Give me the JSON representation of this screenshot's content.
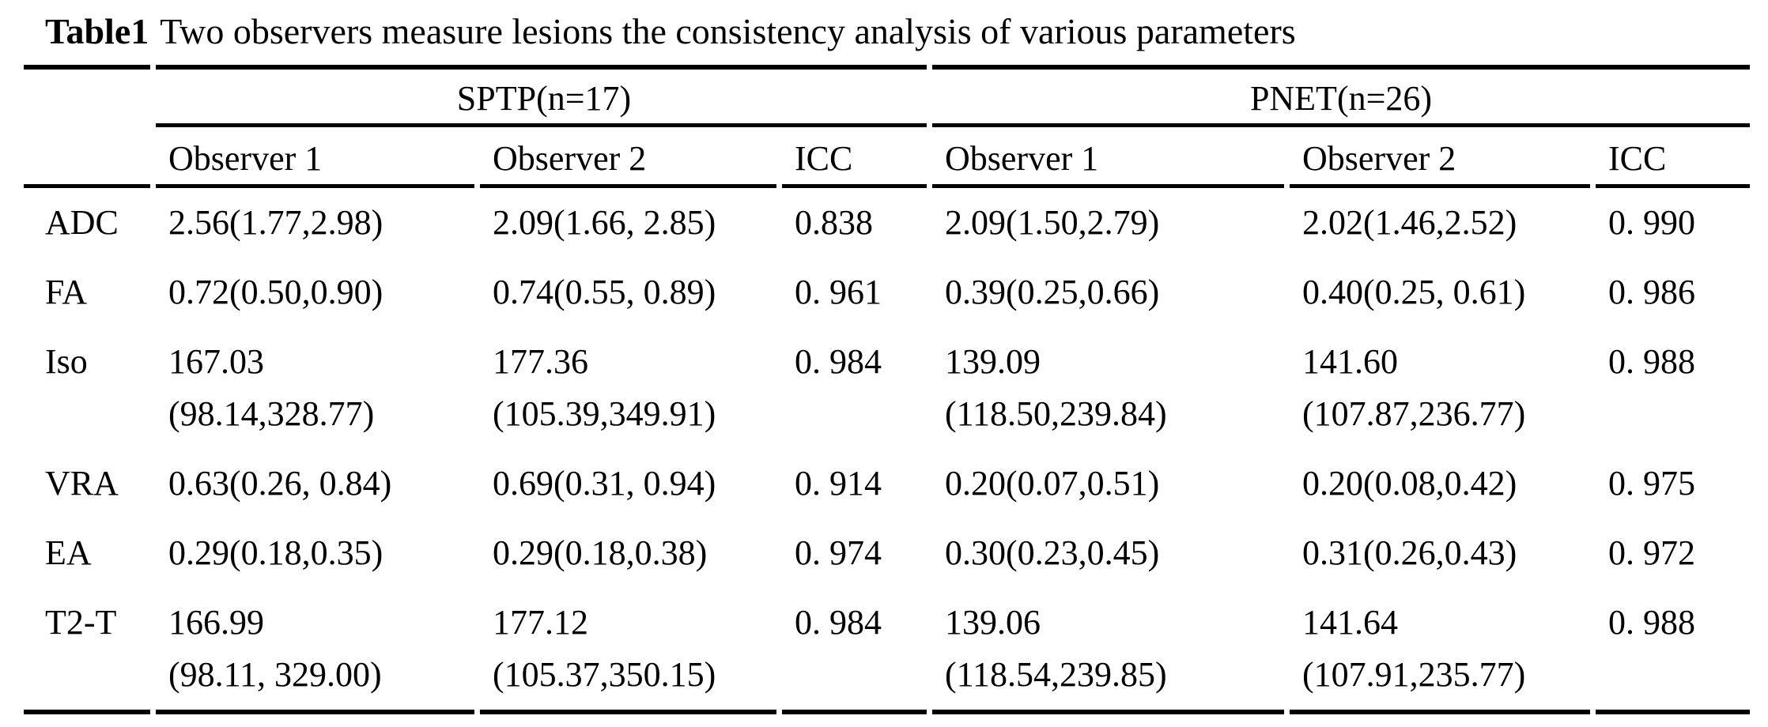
{
  "table_caption": {
    "label": "Table1",
    "text": "Two observers measure lesions the consistency analysis of various parameters"
  },
  "header": {
    "group_sptp": "SPTP(n=17)",
    "group_pnet": "PNET(n=26)",
    "col_observer1": "Observer 1",
    "col_observer2": "Observer 2",
    "col_icc": "ICC"
  },
  "rows": [
    {
      "param": "ADC",
      "sptp_obs1": "2.56(1.77,2.98)",
      "sptp_obs1_l2": "",
      "sptp_obs2": "2.09(1.66, 2.85)",
      "sptp_obs2_l2": "",
      "sptp_icc": "0.838",
      "pnet_obs1": "2.09(1.50,2.79)",
      "pnet_obs1_l2": "",
      "pnet_obs2": "2.02(1.46,2.52)",
      "pnet_obs2_l2": "",
      "pnet_icc": "0. 990"
    },
    {
      "param": "FA",
      "sptp_obs1": "0.72(0.50,0.90)",
      "sptp_obs1_l2": "",
      "sptp_obs2": "0.74(0.55, 0.89)",
      "sptp_obs2_l2": "",
      "sptp_icc": "0. 961",
      "pnet_obs1": "0.39(0.25,0.66)",
      "pnet_obs1_l2": "",
      "pnet_obs2": "0.40(0.25, 0.61)",
      "pnet_obs2_l2": "",
      "pnet_icc": "0. 986"
    },
    {
      "param": "Iso",
      "sptp_obs1": "167.03",
      "sptp_obs1_l2": "(98.14,328.77)",
      "sptp_obs2": "177.36",
      "sptp_obs2_l2": "(105.39,349.91)",
      "sptp_icc": "0. 984",
      "pnet_obs1": "139.09",
      "pnet_obs1_l2": "(118.50,239.84)",
      "pnet_obs2": "141.60",
      "pnet_obs2_l2": "(107.87,236.77)",
      "pnet_icc": "0. 988"
    },
    {
      "param": "VRA",
      "sptp_obs1": "0.63(0.26, 0.84)",
      "sptp_obs1_l2": "",
      "sptp_obs2": "0.69(0.31, 0.94)",
      "sptp_obs2_l2": "",
      "sptp_icc": "0. 914",
      "pnet_obs1": "0.20(0.07,0.51)",
      "pnet_obs1_l2": "",
      "pnet_obs2": "0.20(0.08,0.42)",
      "pnet_obs2_l2": "",
      "pnet_icc": "0. 975"
    },
    {
      "param": "EA",
      "sptp_obs1": "0.29(0.18,0.35)",
      "sptp_obs1_l2": "",
      "sptp_obs2": "0.29(0.18,0.38)",
      "sptp_obs2_l2": "",
      "sptp_icc": "0. 974",
      "pnet_obs1": "0.30(0.23,0.45)",
      "pnet_obs1_l2": "",
      "pnet_obs2": "0.31(0.26,0.43)",
      "pnet_obs2_l2": "",
      "pnet_icc": "0. 972"
    },
    {
      "param": "T2-T",
      "sptp_obs1": "166.99",
      "sptp_obs1_l2": "(98.11, 329.00)",
      "sptp_obs2": "177.12",
      "sptp_obs2_l2": "(105.37,350.15)",
      "sptp_icc": "0. 984",
      "pnet_obs1": "139.06",
      "pnet_obs1_l2": "(118.54,239.85)",
      "pnet_obs2": "141.64",
      "pnet_obs2_l2": "(107.91,235.77)",
      "pnet_icc": "0. 988"
    }
  ]
}
